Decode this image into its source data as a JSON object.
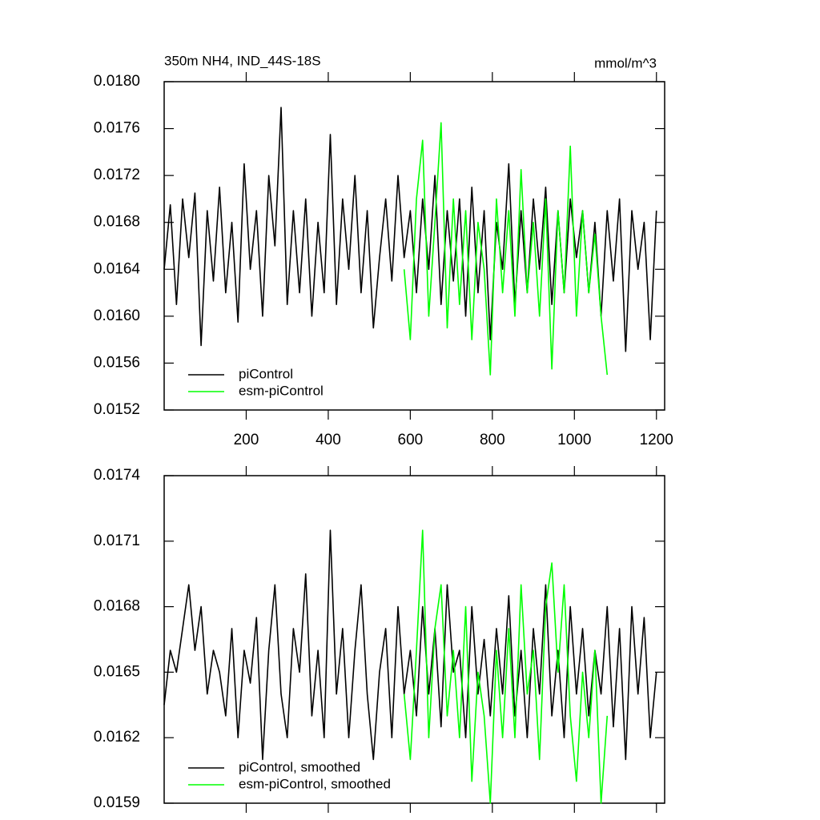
{
  "chart_data": [
    {
      "type": "line",
      "title": "350m NH4, IND_44S-18S",
      "units": "mmol/m^3",
      "xlim": [
        0,
        1220
      ],
      "xticks": [
        200,
        400,
        600,
        800,
        1000,
        1200
      ],
      "xtick_labels": true,
      "ylim": [
        0.0152,
        0.018
      ],
      "yticks": [
        {
          "value": 0.0152,
          "label": "0.0152"
        },
        {
          "value": 0.0156,
          "label": "0.0156"
        },
        {
          "value": 0.016,
          "label": "0.0160"
        },
        {
          "value": 0.0164,
          "label": "0.0164"
        },
        {
          "value": 0.0168,
          "label": "0.0168"
        },
        {
          "value": 0.0172,
          "label": "0.0172"
        },
        {
          "value": 0.0176,
          "label": "0.0176"
        },
        {
          "value": 0.018,
          "label": "0.0180"
        }
      ],
      "legend": "lower left",
      "series": [
        {
          "name": "piControl",
          "color": "#000000",
          "x": [
            0,
            15,
            30,
            45,
            60,
            75,
            90,
            105,
            120,
            135,
            150,
            165,
            180,
            195,
            210,
            225,
            240,
            255,
            270,
            285,
            300,
            315,
            330,
            345,
            360,
            375,
            390,
            405,
            420,
            435,
            450,
            465,
            480,
            495,
            510,
            525,
            540,
            555,
            570,
            585,
            600,
            615,
            630,
            645,
            660,
            675,
            690,
            705,
            720,
            735,
            750,
            765,
            780,
            795,
            810,
            825,
            840,
            855,
            870,
            885,
            900,
            915,
            930,
            945,
            960,
            975,
            990,
            1005,
            1020,
            1035,
            1050,
            1065,
            1080,
            1095,
            1110,
            1125,
            1140,
            1155,
            1170,
            1185,
            1200
          ],
          "values": [
            0.0164,
            0.01695,
            0.0161,
            0.017,
            0.0165,
            0.01705,
            0.01575,
            0.0169,
            0.0163,
            0.0171,
            0.0162,
            0.0168,
            0.01595,
            0.0173,
            0.0164,
            0.0169,
            0.016,
            0.0172,
            0.0166,
            0.01778,
            0.0161,
            0.0169,
            0.0162,
            0.017,
            0.016,
            0.0168,
            0.0162,
            0.01755,
            0.0161,
            0.017,
            0.0164,
            0.0172,
            0.0162,
            0.0169,
            0.0159,
            0.0165,
            0.017,
            0.0163,
            0.0172,
            0.0165,
            0.0169,
            0.0162,
            0.017,
            0.0164,
            0.0172,
            0.0161,
            0.0169,
            0.0163,
            0.017,
            0.016,
            0.0171,
            0.0162,
            0.0169,
            0.0158,
            0.0168,
            0.0164,
            0.0173,
            0.0161,
            0.0169,
            0.0162,
            0.017,
            0.0164,
            0.0171,
            0.0161,
            0.0169,
            0.0162,
            0.017,
            0.0165,
            0.0169,
            0.0162,
            0.0168,
            0.016,
            0.0169,
            0.0163,
            0.017,
            0.0157,
            0.0169,
            0.0164,
            0.0168,
            0.0158,
            0.0169
          ]
        },
        {
          "name": "esm-piControl",
          "color": "#00ff00",
          "x": [
            585,
            600,
            615,
            630,
            645,
            660,
            675,
            690,
            705,
            720,
            735,
            750,
            765,
            780,
            795,
            810,
            825,
            840,
            855,
            870,
            885,
            900,
            915,
            930,
            945,
            960,
            975,
            990,
            1005,
            1020,
            1035,
            1050,
            1065,
            1080
          ],
          "values": [
            0.0164,
            0.0158,
            0.017,
            0.0175,
            0.016,
            0.0168,
            0.01765,
            0.0159,
            0.017,
            0.0161,
            0.0169,
            0.0158,
            0.0168,
            0.0164,
            0.0155,
            0.017,
            0.0162,
            0.0169,
            0.016,
            0.01725,
            0.0162,
            0.0168,
            0.016,
            0.017,
            0.01555,
            0.0169,
            0.0162,
            0.01745,
            0.016,
            0.0169,
            0.0162,
            0.0167,
            0.016,
            0.0155
          ]
        }
      ]
    },
    {
      "type": "line",
      "xlim": [
        0,
        1220
      ],
      "xticks": [
        200,
        400,
        600,
        800,
        1000,
        1200
      ],
      "xtick_labels": false,
      "ylim": [
        0.0159,
        0.0174
      ],
      "yticks": [
        0.0159,
        0.0162,
        0.0165,
        0.0168,
        0.0171,
        0.0174
      ],
      "legend": "lower left",
      "series": [
        {
          "name": "piControl, smoothed",
          "color": "#000000",
          "x": [
            0,
            15,
            30,
            45,
            60,
            75,
            90,
            105,
            120,
            135,
            150,
            165,
            180,
            195,
            210,
            225,
            240,
            255,
            270,
            285,
            300,
            315,
            330,
            345,
            360,
            375,
            390,
            405,
            420,
            435,
            450,
            465,
            480,
            495,
            510,
            525,
            540,
            555,
            570,
            585,
            600,
            615,
            630,
            645,
            660,
            675,
            690,
            705,
            720,
            735,
            750,
            765,
            780,
            795,
            810,
            825,
            840,
            855,
            870,
            885,
            900,
            915,
            930,
            945,
            960,
            975,
            990,
            1005,
            1020,
            1035,
            1050,
            1065,
            1080,
            1095,
            1110,
            1125,
            1140,
            1155,
            1170,
            1185,
            1200
          ],
          "values": [
            0.01635,
            0.0166,
            0.0165,
            0.0167,
            0.0169,
            0.0166,
            0.0168,
            0.0164,
            0.0166,
            0.0165,
            0.0163,
            0.0167,
            0.0162,
            0.0166,
            0.01645,
            0.01675,
            0.0161,
            0.0166,
            0.0169,
            0.0164,
            0.0162,
            0.0167,
            0.0165,
            0.01695,
            0.0163,
            0.0166,
            0.0162,
            0.01715,
            0.0164,
            0.0167,
            0.0162,
            0.0166,
            0.0169,
            0.0164,
            0.0161,
            0.0165,
            0.0167,
            0.0162,
            0.0168,
            0.0164,
            0.0166,
            0.0163,
            0.0168,
            0.0164,
            0.0167,
            0.01625,
            0.0169,
            0.0165,
            0.0166,
            0.0162,
            0.0168,
            0.0164,
            0.01665,
            0.0163,
            0.0167,
            0.0164,
            0.01685,
            0.0163,
            0.0166,
            0.0162,
            0.0167,
            0.0164,
            0.0169,
            0.0163,
            0.0166,
            0.0162,
            0.0168,
            0.0164,
            0.0167,
            0.0163,
            0.0166,
            0.0164,
            0.0168,
            0.01625,
            0.0167,
            0.0161,
            0.0168,
            0.0164,
            0.01675,
            0.0162,
            0.0165
          ]
        },
        {
          "name": "esm-piControl, smoothed",
          "color": "#00ff00",
          "x": [
            585,
            600,
            615,
            630,
            645,
            660,
            675,
            690,
            705,
            720,
            735,
            750,
            765,
            780,
            795,
            810,
            825,
            840,
            855,
            870,
            885,
            900,
            915,
            930,
            945,
            960,
            975,
            990,
            1005,
            1020,
            1035,
            1050,
            1065,
            1080
          ],
          "values": [
            0.0164,
            0.0161,
            0.0166,
            0.01715,
            0.0162,
            0.0167,
            0.0169,
            0.0163,
            0.0166,
            0.0162,
            0.0168,
            0.016,
            0.0165,
            0.0163,
            0.0159,
            0.0166,
            0.0162,
            0.0167,
            0.0162,
            0.0169,
            0.0164,
            0.0166,
            0.0161,
            0.0168,
            0.017,
            0.0165,
            0.0169,
            0.0163,
            0.016,
            0.0165,
            0.0162,
            0.0166,
            0.0159,
            0.0163
          ]
        }
      ]
    }
  ]
}
